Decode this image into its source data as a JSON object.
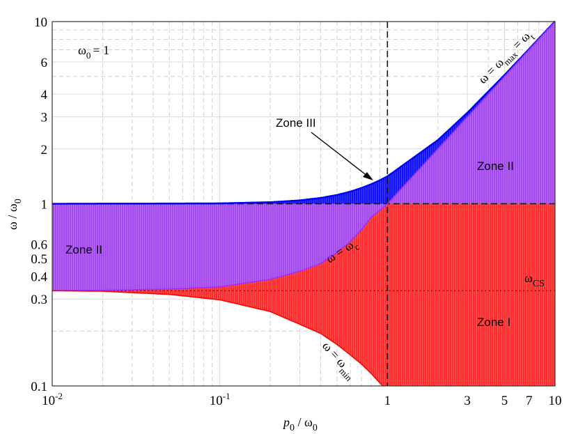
{
  "chart_data": {
    "type": "area",
    "xlabel": "p0 / ω0",
    "ylabel": "ω / ω0",
    "x_scale": "log",
    "y_scale": "log",
    "xlim": [
      0.01,
      10
    ],
    "ylim": [
      0.1,
      10
    ],
    "grid": true,
    "x_ticks": [
      {
        "value": 0.01,
        "label": "10",
        "exp": "-2"
      },
      {
        "value": 0.1,
        "label": "10",
        "exp": "-1"
      },
      {
        "value": 1,
        "label": "1",
        "exp": ""
      },
      {
        "value": 3,
        "label": "3",
        "exp": ""
      },
      {
        "value": 5,
        "label": "5",
        "exp": ""
      },
      {
        "value": 7,
        "label": "7",
        "exp": ""
      },
      {
        "value": 10,
        "label": "10",
        "exp": ""
      }
    ],
    "y_ticks": [
      {
        "value": 0.1,
        "label": "0.1"
      },
      {
        "value": 0.3,
        "label": "0.3"
      },
      {
        "value": 0.4,
        "label": "0.4"
      },
      {
        "value": 0.5,
        "label": "0.5"
      },
      {
        "value": 0.6,
        "label": "0.6"
      },
      {
        "value": 1,
        "label": "1"
      },
      {
        "value": 2,
        "label": "2"
      },
      {
        "value": 3,
        "label": "3"
      },
      {
        "value": 4,
        "label": "4"
      },
      {
        "value": 6,
        "label": "6"
      },
      {
        "value": 10,
        "label": "10"
      }
    ],
    "omega_cs": 0.333,
    "series": [
      {
        "name": "ω = ωmax = ωt",
        "color": "#0000ff",
        "x": [
          0.01,
          0.1,
          0.2,
          0.3,
          0.4,
          0.5,
          0.6,
          0.7,
          0.8,
          0.9,
          1,
          2,
          3,
          5,
          7,
          10
        ],
        "y": [
          1.0,
          1.005,
          1.02,
          1.044,
          1.077,
          1.118,
          1.166,
          1.221,
          1.281,
          1.345,
          1.414,
          2.236,
          3.162,
          5.099,
          7.071,
          10.05
        ]
      },
      {
        "name": "ω = ωc",
        "color": "#9b30ff",
        "x": [
          0.01,
          0.02,
          0.05,
          0.1,
          0.2,
          0.3,
          0.4,
          0.5,
          0.6,
          0.7,
          0.8,
          0.9,
          1,
          2,
          3,
          5,
          7,
          10
        ],
        "y": [
          0.334,
          0.335,
          0.34,
          0.35,
          0.385,
          0.426,
          0.47,
          0.54,
          0.62,
          0.72,
          0.846,
          0.92,
          1,
          2,
          3,
          5,
          7,
          10
        ]
      },
      {
        "name": "ω = ωmin",
        "color": "#ff0000",
        "x": [
          0.01,
          0.02,
          0.05,
          0.1,
          0.2,
          0.3,
          0.4,
          0.5,
          0.6,
          0.7,
          0.8,
          0.9,
          0.94
        ],
        "y": [
          0.333,
          0.331,
          0.318,
          0.297,
          0.256,
          0.218,
          0.194,
          0.169,
          0.148,
          0.132,
          0.117,
          0.104,
          0.1
        ]
      }
    ],
    "zones": [
      {
        "name": "Zone I",
        "color": "#ff2a2a"
      },
      {
        "name": "Zone II",
        "color": "#a347f0"
      },
      {
        "name": "Zone III",
        "color": "#1010ff"
      }
    ],
    "annotations": {
      "omega0": "ω",
      "omega0_sub": "0",
      "omega0_val": "= 1",
      "zone3": "Zone III",
      "zone2_right": "Zone II",
      "zone2_left": "Zone II",
      "zone1": "Zone I",
      "wcs": "ω",
      "wcs_sub": "CS",
      "wmax_a": "ω = ω",
      "wmax_sub": "max",
      "wmax_b": " = ω",
      "wmax_sub2": "t",
      "wc_a": "ω = ω",
      "wc_sub": "c",
      "wmin_a": "ω = ω",
      "wmin_sub": "min"
    },
    "axis_labels": {
      "x_main": "p",
      "x_sub": "0",
      "x_div": " / ω",
      "x_sub2": "0",
      "y_main": "ω / ω",
      "y_sub": "0"
    }
  }
}
